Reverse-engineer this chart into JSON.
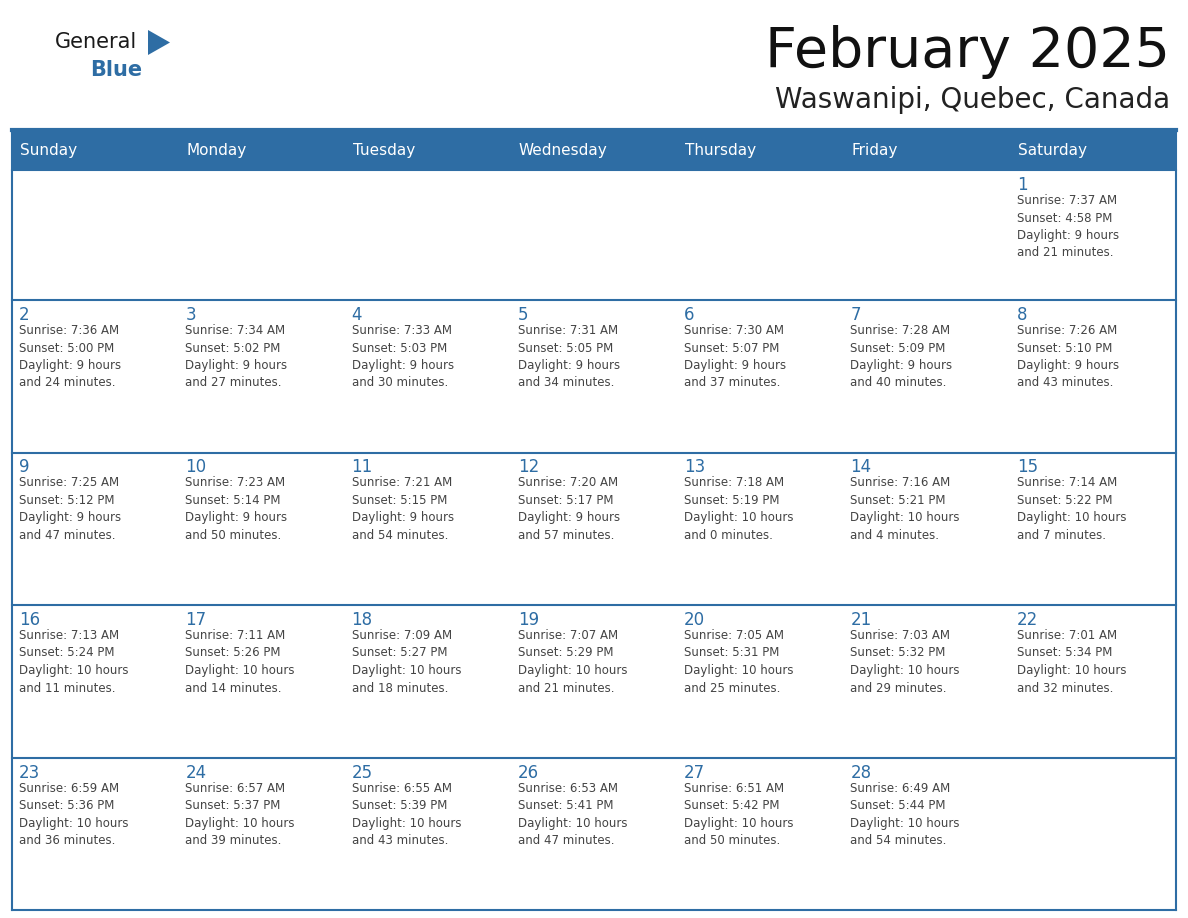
{
  "title": "February 2025",
  "subtitle": "Waswanipi, Quebec, Canada",
  "days_of_week": [
    "Sunday",
    "Monday",
    "Tuesday",
    "Wednesday",
    "Thursday",
    "Friday",
    "Saturday"
  ],
  "header_bg": "#2E6DA4",
  "header_text": "#FFFFFF",
  "cell_bg": "#FFFFFF",
  "row_sep_color": "#2E6DA4",
  "day_number_color": "#2E6DA4",
  "text_color": "#444444",
  "logo_general_color": "#1a1a1a",
  "logo_blue_color": "#2E6DA4",
  "calendar": [
    [
      {
        "day": null,
        "info": null
      },
      {
        "day": null,
        "info": null
      },
      {
        "day": null,
        "info": null
      },
      {
        "day": null,
        "info": null
      },
      {
        "day": null,
        "info": null
      },
      {
        "day": null,
        "info": null
      },
      {
        "day": 1,
        "info": "Sunrise: 7:37 AM\nSunset: 4:58 PM\nDaylight: 9 hours\nand 21 minutes."
      }
    ],
    [
      {
        "day": 2,
        "info": "Sunrise: 7:36 AM\nSunset: 5:00 PM\nDaylight: 9 hours\nand 24 minutes."
      },
      {
        "day": 3,
        "info": "Sunrise: 7:34 AM\nSunset: 5:02 PM\nDaylight: 9 hours\nand 27 minutes."
      },
      {
        "day": 4,
        "info": "Sunrise: 7:33 AM\nSunset: 5:03 PM\nDaylight: 9 hours\nand 30 minutes."
      },
      {
        "day": 5,
        "info": "Sunrise: 7:31 AM\nSunset: 5:05 PM\nDaylight: 9 hours\nand 34 minutes."
      },
      {
        "day": 6,
        "info": "Sunrise: 7:30 AM\nSunset: 5:07 PM\nDaylight: 9 hours\nand 37 minutes."
      },
      {
        "day": 7,
        "info": "Sunrise: 7:28 AM\nSunset: 5:09 PM\nDaylight: 9 hours\nand 40 minutes."
      },
      {
        "day": 8,
        "info": "Sunrise: 7:26 AM\nSunset: 5:10 PM\nDaylight: 9 hours\nand 43 minutes."
      }
    ],
    [
      {
        "day": 9,
        "info": "Sunrise: 7:25 AM\nSunset: 5:12 PM\nDaylight: 9 hours\nand 47 minutes."
      },
      {
        "day": 10,
        "info": "Sunrise: 7:23 AM\nSunset: 5:14 PM\nDaylight: 9 hours\nand 50 minutes."
      },
      {
        "day": 11,
        "info": "Sunrise: 7:21 AM\nSunset: 5:15 PM\nDaylight: 9 hours\nand 54 minutes."
      },
      {
        "day": 12,
        "info": "Sunrise: 7:20 AM\nSunset: 5:17 PM\nDaylight: 9 hours\nand 57 minutes."
      },
      {
        "day": 13,
        "info": "Sunrise: 7:18 AM\nSunset: 5:19 PM\nDaylight: 10 hours\nand 0 minutes."
      },
      {
        "day": 14,
        "info": "Sunrise: 7:16 AM\nSunset: 5:21 PM\nDaylight: 10 hours\nand 4 minutes."
      },
      {
        "day": 15,
        "info": "Sunrise: 7:14 AM\nSunset: 5:22 PM\nDaylight: 10 hours\nand 7 minutes."
      }
    ],
    [
      {
        "day": 16,
        "info": "Sunrise: 7:13 AM\nSunset: 5:24 PM\nDaylight: 10 hours\nand 11 minutes."
      },
      {
        "day": 17,
        "info": "Sunrise: 7:11 AM\nSunset: 5:26 PM\nDaylight: 10 hours\nand 14 minutes."
      },
      {
        "day": 18,
        "info": "Sunrise: 7:09 AM\nSunset: 5:27 PM\nDaylight: 10 hours\nand 18 minutes."
      },
      {
        "day": 19,
        "info": "Sunrise: 7:07 AM\nSunset: 5:29 PM\nDaylight: 10 hours\nand 21 minutes."
      },
      {
        "day": 20,
        "info": "Sunrise: 7:05 AM\nSunset: 5:31 PM\nDaylight: 10 hours\nand 25 minutes."
      },
      {
        "day": 21,
        "info": "Sunrise: 7:03 AM\nSunset: 5:32 PM\nDaylight: 10 hours\nand 29 minutes."
      },
      {
        "day": 22,
        "info": "Sunrise: 7:01 AM\nSunset: 5:34 PM\nDaylight: 10 hours\nand 32 minutes."
      }
    ],
    [
      {
        "day": 23,
        "info": "Sunrise: 6:59 AM\nSunset: 5:36 PM\nDaylight: 10 hours\nand 36 minutes."
      },
      {
        "day": 24,
        "info": "Sunrise: 6:57 AM\nSunset: 5:37 PM\nDaylight: 10 hours\nand 39 minutes."
      },
      {
        "day": 25,
        "info": "Sunrise: 6:55 AM\nSunset: 5:39 PM\nDaylight: 10 hours\nand 43 minutes."
      },
      {
        "day": 26,
        "info": "Sunrise: 6:53 AM\nSunset: 5:41 PM\nDaylight: 10 hours\nand 47 minutes."
      },
      {
        "day": 27,
        "info": "Sunrise: 6:51 AM\nSunset: 5:42 PM\nDaylight: 10 hours\nand 50 minutes."
      },
      {
        "day": 28,
        "info": "Sunrise: 6:49 AM\nSunset: 5:44 PM\nDaylight: 10 hours\nand 54 minutes."
      },
      {
        "day": null,
        "info": null
      }
    ]
  ],
  "figsize": [
    11.88,
    9.18
  ],
  "dpi": 100
}
